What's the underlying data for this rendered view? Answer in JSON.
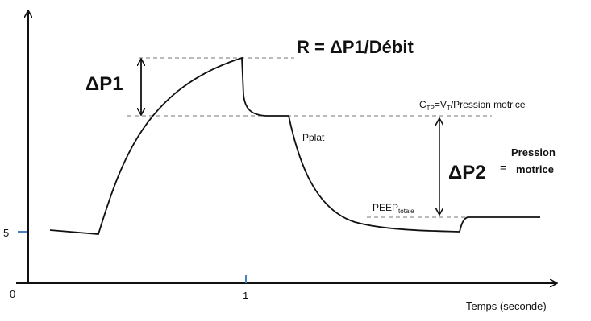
{
  "title": "R = ΔP1/Débit",
  "delta_p1": "ΔP1",
  "compliance": {
    "c": "C",
    "c_sub": "TP",
    "eq_v": "=V",
    "v_sub": "T",
    "rest": "/Pression motrice"
  },
  "pplat": "Pplat",
  "delta_p2": "ΔP2",
  "equals": "=",
  "pression_motrice": [
    "Pression",
    "motrice"
  ],
  "peep": {
    "main": "PEEP",
    "sub": "totale"
  },
  "axis": {
    "y_tick": "5",
    "origin": "0",
    "x_tick": "1",
    "x_label": "Temps (seconde)"
  }
}
